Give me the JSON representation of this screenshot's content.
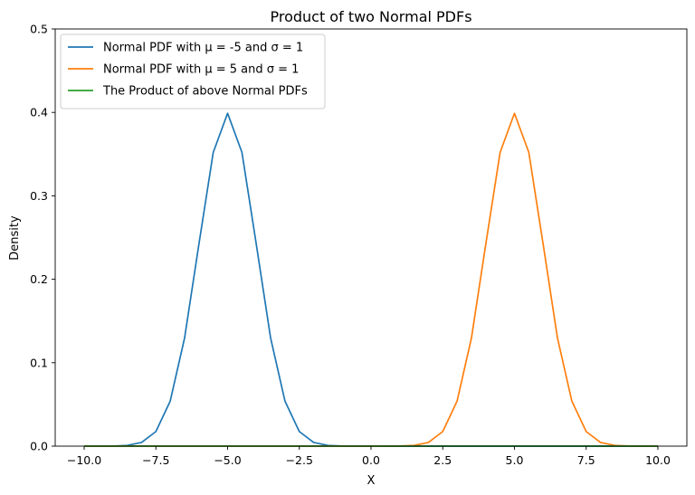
{
  "chart_data": {
    "type": "line",
    "title": "Product of two Normal PDFs",
    "xlabel": "X",
    "ylabel": "Density",
    "xlim": [
      -10.0,
      10.0
    ],
    "ylim": [
      0.0,
      0.5
    ],
    "x_ticks": [
      -10.0,
      -7.5,
      -5.0,
      -2.5,
      0.0,
      2.5,
      5.0,
      7.5,
      10.0
    ],
    "x_tick_labels": [
      "−10.0",
      "−7.5",
      "−5.0",
      "−2.5",
      "0.0",
      "2.5",
      "5.0",
      "7.5",
      "10.0"
    ],
    "y_ticks": [
      0.0,
      0.1,
      0.2,
      0.3,
      0.4,
      0.5
    ],
    "y_tick_labels": [
      "0.0",
      "0.1",
      "0.2",
      "0.3",
      "0.4",
      "0.5"
    ],
    "grid": false,
    "legend_position": "top-left",
    "series": [
      {
        "name": "Normal PDF with μ = -5 and σ = 1",
        "color": "#1f77b4",
        "x": [
          -10.0,
          -9.0,
          -8.5,
          -8.0,
          -7.5,
          -7.0,
          -6.5,
          -6.0,
          -5.5,
          -5.0,
          -4.5,
          -4.0,
          -3.5,
          -3.0,
          -2.5,
          -2.0,
          -1.5,
          -1.0,
          0.0,
          2.5,
          5.0,
          7.5,
          10.0
        ],
        "values": [
          0.0,
          0.0001,
          0.0009,
          0.0044,
          0.0175,
          0.054,
          0.1295,
          0.242,
          0.3521,
          0.3989,
          0.3521,
          0.242,
          0.1295,
          0.054,
          0.0175,
          0.0044,
          0.0009,
          0.0001,
          0.0,
          0.0,
          0.0,
          0.0,
          0.0
        ]
      },
      {
        "name": "Normal PDF with μ = 5 and σ = 1",
        "color": "#ff7f0e",
        "x": [
          -10.0,
          -7.5,
          -5.0,
          -2.5,
          0.0,
          1.0,
          1.5,
          2.0,
          2.5,
          3.0,
          3.5,
          4.0,
          4.5,
          5.0,
          5.5,
          6.0,
          6.5,
          7.0,
          7.5,
          8.0,
          8.5,
          9.0,
          10.0
        ],
        "values": [
          0.0,
          0.0,
          0.0,
          0.0,
          0.0,
          0.0001,
          0.0009,
          0.0044,
          0.0175,
          0.054,
          0.1295,
          0.242,
          0.3521,
          0.3989,
          0.3521,
          0.242,
          0.1295,
          0.054,
          0.0175,
          0.0044,
          0.0009,
          0.0001,
          0.0
        ]
      },
      {
        "name": "The Product of above Normal PDFs",
        "color": "#2ca02c",
        "x": [
          -10.0,
          -5.0,
          0.0,
          5.0,
          10.0
        ],
        "values": [
          0.0,
          0.0,
          0.0,
          0.0,
          0.0
        ]
      }
    ]
  }
}
